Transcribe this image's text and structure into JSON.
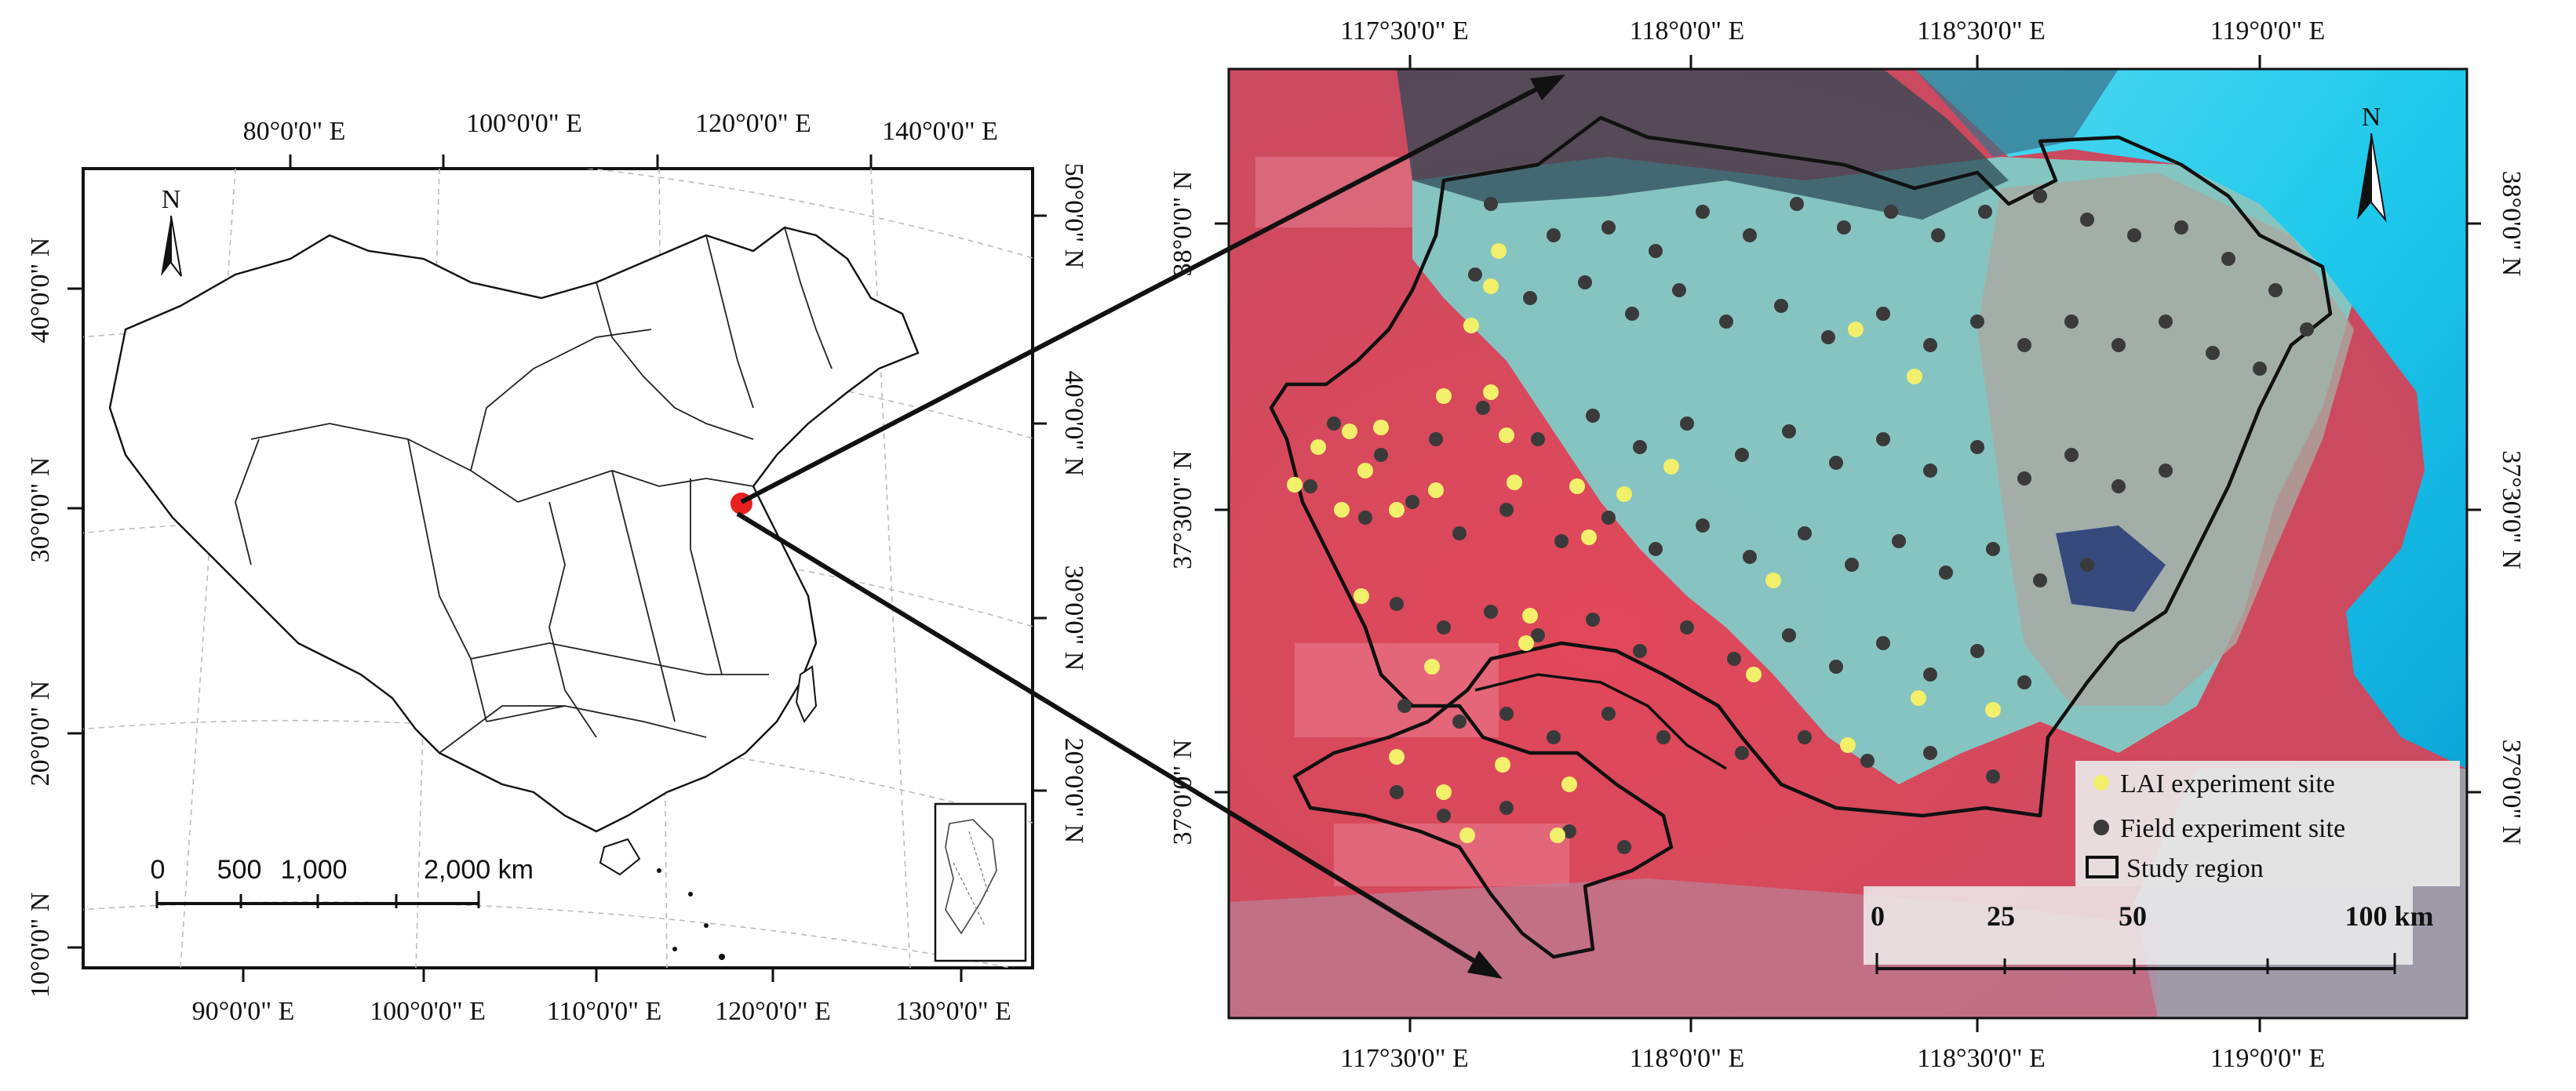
{
  "left_map": {
    "top_lon_labels": [
      "80°0'0\" E",
      "100°0'0\" E",
      "120°0'0\" E",
      "140°0'0\" E"
    ],
    "bottom_lon_labels": [
      "90°0'0\" E",
      "100°0'0\" E",
      "110°0'0\" E",
      "120°0'0\" E",
      "130°0'0\" E"
    ],
    "left_lat_labels": [
      "40°0'0\" N",
      "30°0'0\" N",
      "20°0'0\" N",
      "10°0'0\" N"
    ],
    "right_lat_labels": [
      "50°0'0\" N",
      "40°0'0\" N",
      "30°0'0\" N",
      "20°0'0\" N"
    ],
    "north_label": "N",
    "scalebar_labels": [
      "0",
      "500",
      "1,000",
      "2,000 km"
    ]
  },
  "right_map": {
    "top_lon_labels": [
      "117°30'0\" E",
      "118°0'0\" E",
      "118°30'0\" E",
      "119°0'0\" E"
    ],
    "bottom_lon_labels": [
      "117°30'0\" E",
      "118°0'0\" E",
      "118°30'0\" E",
      "119°0'0\" E"
    ],
    "left_lat_labels": [
      "38°0'0\" N",
      "37°30'0\" N",
      "37°0'0\" N"
    ],
    "right_lat_labels": [
      "38°0'0\" N",
      "37°30'0\" N",
      "37°0'0\" N"
    ],
    "north_label": "N",
    "legend": {
      "lai": "LAI experiment site",
      "field": "Field experiment site",
      "region": "Study region"
    },
    "scalebar_labels": [
      "0",
      "25",
      "50",
      "100 km"
    ]
  },
  "colors": {
    "lai_site": "#f2ef6a",
    "field_site": "#3a3a3a",
    "study_area_marker": "#e8201e",
    "vegetation_red": "#d94a5c",
    "soil_cyan": "#7fd3cf",
    "sea_cyan": "#1fc9ec"
  }
}
